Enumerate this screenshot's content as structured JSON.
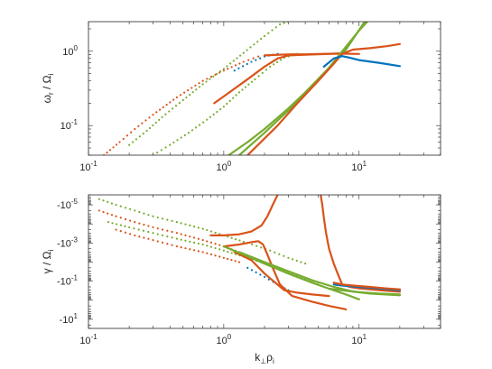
{
  "colors": {
    "blue": "#0072BD",
    "orange": "#D95319",
    "green": "#77AC30"
  },
  "chart_data": [
    {
      "type": "line",
      "xscale": "log",
      "yscale": "log",
      "xlim": [
        0.1,
        40
      ],
      "ylim": [
        0.04,
        2.5
      ],
      "grid": false,
      "xticks": [
        {
          "v": 0.1,
          "label": "10",
          "exp": "-1"
        },
        {
          "v": 1,
          "label": "10",
          "exp": "0"
        },
        {
          "v": 10,
          "label": "10",
          "exp": "1"
        }
      ],
      "yticks": [
        {
          "v": 0.1,
          "label": "10",
          "exp": "-1"
        },
        {
          "v": 1,
          "label": "10",
          "exp": "0"
        }
      ],
      "ylabel": {
        "main": "ω",
        "sub1": "r",
        "mid": " / Ω",
        "sub2": "i"
      },
      "series": [
        {
          "color": "orange",
          "style": "dots",
          "x": [
            0.13,
            0.17,
            0.22,
            0.3,
            0.45,
            0.7,
            1.0,
            1.4,
            1.8
          ],
          "y": [
            0.04,
            0.06,
            0.09,
            0.14,
            0.24,
            0.4,
            0.55,
            0.72,
            0.85
          ]
        },
        {
          "color": "green",
          "style": "dots",
          "x": [
            0.2,
            0.27,
            0.35,
            0.5,
            0.7,
            1.0,
            1.4,
            2.0,
            2.6,
            3.2
          ],
          "y": [
            0.055,
            0.085,
            0.13,
            0.22,
            0.36,
            0.58,
            0.95,
            1.6,
            2.3,
            2.6
          ]
        },
        {
          "color": "blue",
          "style": "dots",
          "x": [
            1.2,
            1.6,
            2.0,
            2.5
          ],
          "y": [
            0.55,
            0.72,
            0.85,
            0.92
          ]
        },
        {
          "color": "green",
          "style": "dots",
          "x": [
            0.3,
            0.4,
            0.55,
            0.75,
            1.0,
            1.3,
            1.7,
            2.2,
            2.8,
            3.5
          ],
          "y": [
            0.04,
            0.055,
            0.08,
            0.12,
            0.18,
            0.28,
            0.42,
            0.62,
            0.82,
            0.92
          ]
        },
        {
          "color": "orange",
          "style": "line",
          "x": [
            0.85,
            1.1,
            1.5,
            2.0,
            2.5,
            3.0,
            4.0,
            5.0,
            7.0,
            8.0
          ],
          "y": [
            0.2,
            0.28,
            0.42,
            0.62,
            0.8,
            0.88,
            0.9,
            0.91,
            0.93,
            0.94
          ]
        },
        {
          "color": "orange",
          "style": "line",
          "x": [
            2.0,
            2.6,
            3.2,
            4.0,
            5.0,
            7.0,
            10.0
          ],
          "y": [
            0.88,
            0.9,
            0.91,
            0.91,
            0.92,
            0.93,
            0.92
          ]
        },
        {
          "color": "green",
          "style": "line",
          "x": [
            1.0,
            1.5,
            2.0,
            3.0,
            4.0,
            6.0,
            8.0,
            11.0
          ],
          "y": [
            0.036,
            0.06,
            0.09,
            0.17,
            0.28,
            0.6,
            1.05,
            2.5
          ]
        },
        {
          "color": "green",
          "style": "line",
          "x": [
            1.3,
            2.0,
            3.0,
            4.5,
            6.0,
            8.0,
            10.0,
            11.5
          ],
          "y": [
            0.04,
            0.08,
            0.16,
            0.34,
            0.6,
            1.15,
            1.9,
            2.5
          ]
        },
        {
          "color": "orange",
          "style": "line",
          "x": [
            1.5,
            2.5,
            3.5,
            5.0,
            6.5,
            7.5,
            9.0,
            12.0,
            16.0,
            20.0
          ],
          "y": [
            0.04,
            0.1,
            0.2,
            0.4,
            0.68,
            0.92,
            1.05,
            1.1,
            1.17,
            1.25
          ]
        },
        {
          "color": "blue",
          "style": "line",
          "x": [
            5.5,
            6.5,
            7.5,
            8.5,
            10.0,
            14.0,
            20.0
          ],
          "y": [
            0.62,
            0.8,
            0.86,
            0.82,
            0.76,
            0.7,
            0.63
          ]
        }
      ]
    },
    {
      "type": "line",
      "xscale": "log",
      "yscale": "symlog-negative",
      "xlim": [
        0.1,
        40
      ],
      "ylim": [
        3e-06,
        30
      ],
      "grid": false,
      "xticks": [
        {
          "v": 0.1,
          "label": "10",
          "exp": "-1"
        },
        {
          "v": 1,
          "label": "10",
          "exp": "0"
        },
        {
          "v": 10,
          "label": "10",
          "exp": "1"
        }
      ],
      "yticks": [
        {
          "v": 1e-05,
          "label": "-10",
          "exp": "-5"
        },
        {
          "v": 0.001,
          "label": "-10",
          "exp": "-3"
        },
        {
          "v": 0.1,
          "label": "-10",
          "exp": "-1"
        },
        {
          "v": 10,
          "label": "-10",
          "exp": "1"
        }
      ],
      "xlabel": {
        "main": "k",
        "sub1": "⊥",
        "mid": "ρ",
        "sub2": "i"
      },
      "ylabel": {
        "main": "γ",
        "sub1": "",
        "mid": " / Ω",
        "sub2": "i"
      },
      "series": [
        {
          "color": "green",
          "style": "dots",
          "x": [
            0.12,
            0.16,
            0.22,
            0.3,
            0.45,
            0.7,
            1.0,
            1.5,
            2.2,
            3.0,
            4.0
          ],
          "y": [
            5e-06,
            1e-05,
            2e-05,
            4e-05,
            8e-05,
            0.00018,
            0.0004,
            0.001,
            0.0025,
            0.006,
            0.012
          ]
        },
        {
          "color": "orange",
          "style": "dots",
          "x": [
            0.12,
            0.16,
            0.22,
            0.3,
            0.45,
            0.7,
            1.0,
            1.3
          ],
          "y": [
            2e-05,
            4e-05,
            8e-05,
            0.00015,
            0.0003,
            0.0007,
            0.0015,
            0.003
          ]
        },
        {
          "color": "green",
          "style": "dots",
          "x": [
            0.14,
            0.2,
            0.3,
            0.45,
            0.7,
            1.0,
            1.5,
            2.2,
            3.0,
            4.0,
            5.0
          ],
          "y": [
            8e-05,
            0.00015,
            0.0003,
            0.0006,
            0.0012,
            0.0025,
            0.006,
            0.015,
            0.035,
            0.07,
            0.12
          ]
        },
        {
          "color": "orange",
          "style": "dots",
          "x": [
            0.16,
            0.22,
            0.3,
            0.45,
            0.7,
            1.0,
            1.3
          ],
          "y": [
            0.0002,
            0.0004,
            0.0007,
            0.0015,
            0.003,
            0.006,
            0.01
          ]
        },
        {
          "color": "blue",
          "style": "dots",
          "x": [
            1.5,
            2.0,
            2.5,
            3.0
          ],
          "y": [
            0.02,
            0.06,
            0.15,
            0.3
          ]
        },
        {
          "color": "orange",
          "style": "line",
          "x": [
            0.8,
            1.0,
            1.3,
            1.6,
            1.9,
            2.1,
            2.3,
            2.5
          ],
          "y": [
            0.0004,
            0.0004,
            0.00035,
            0.00025,
            0.00012,
            4e-05,
            1e-05,
            3e-06
          ]
        },
        {
          "color": "orange",
          "style": "line",
          "x": [
            1.0,
            1.3,
            1.6,
            1.8,
            1.95,
            2.1,
            2.3,
            2.6,
            3.2,
            4.5,
            6.0,
            8.0
          ],
          "y": [
            0.0015,
            0.0012,
            0.0009,
            0.0008,
            0.0012,
            0.004,
            0.02,
            0.15,
            0.6,
            1.2,
            2.0,
            3.0
          ]
        },
        {
          "color": "orange",
          "style": "line",
          "x": [
            1.2,
            1.6,
            2.0,
            2.4,
            2.8,
            3.5,
            4.5,
            6.0
          ],
          "y": [
            0.003,
            0.008,
            0.04,
            0.12,
            0.3,
            0.4,
            0.5,
            0.6
          ]
        },
        {
          "color": "green",
          "style": "line",
          "x": [
            1.0,
            1.5,
            2.0,
            3.0,
            4.5,
            6.0,
            8.0,
            10.0
          ],
          "y": [
            0.0015,
            0.005,
            0.012,
            0.04,
            0.12,
            0.25,
            0.5,
            0.9
          ]
        },
        {
          "color": "green",
          "style": "line",
          "x": [
            1.3,
            2.0,
            3.0,
            4.5,
            6.5,
            9.0,
            12.0,
            20.0
          ],
          "y": [
            0.003,
            0.01,
            0.03,
            0.09,
            0.2,
            0.35,
            0.45,
            0.55
          ]
        },
        {
          "color": "orange",
          "style": "line",
          "x": [
            5.2,
            5.35,
            5.5,
            5.7,
            6.0,
            6.5,
            7.0,
            7.5,
            8.5,
            10.0,
            14.0,
            20.0
          ],
          "y": [
            3e-06,
            1e-05,
            5e-05,
            0.0003,
            0.002,
            0.012,
            0.045,
            0.15,
            0.2,
            0.24,
            0.3,
            0.36
          ]
        },
        {
          "color": "blue",
          "style": "line",
          "x": [
            6.5,
            7.5,
            9.0,
            12.0,
            16.0,
            20.0
          ],
          "y": [
            0.15,
            0.17,
            0.19,
            0.22,
            0.26,
            0.3
          ]
        },
        {
          "color": "orange",
          "style": "line",
          "x": [
            6.5,
            7.5,
            9.0,
            12.0,
            16.0,
            20.0
          ],
          "y": [
            0.12,
            0.15,
            0.17,
            0.2,
            0.24,
            0.27
          ]
        },
        {
          "color": "green",
          "style": "line",
          "x": [
            6.0,
            8.0,
            10.0,
            14.0,
            20.0
          ],
          "y": [
            0.25,
            0.32,
            0.38,
            0.45,
            0.5
          ]
        }
      ]
    }
  ]
}
